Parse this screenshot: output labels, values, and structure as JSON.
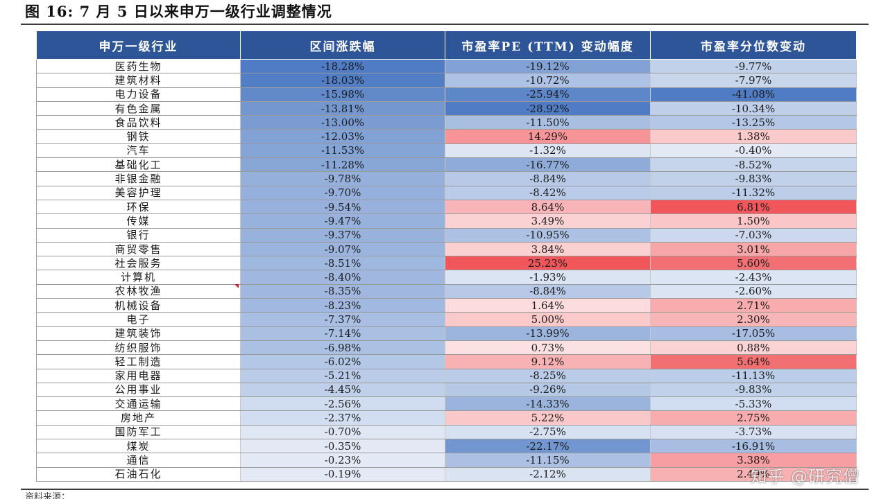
{
  "title": "图 16: 7 月 5 日以来申万一级行业调整情况",
  "table": {
    "headers": [
      "申万一级行业",
      "区间涨跌幅",
      "市盈率PE (TTM) 变动幅度",
      "市盈率分位数变动"
    ],
    "rows": [
      [
        "医药生物",
        "-18.28%",
        "-19.12%",
        "-9.77%"
      ],
      [
        "建筑材料",
        "-18.03%",
        "-10.72%",
        "-7.97%"
      ],
      [
        "电力设备",
        "-15.98%",
        "-25.94%",
        "-41.08%"
      ],
      [
        "有色金属",
        "-13.81%",
        "-28.92%",
        "-10.34%"
      ],
      [
        "食品饮料",
        "-13.00%",
        "-11.50%",
        "-13.25%"
      ],
      [
        "钢铁",
        "-12.03%",
        "14.29%",
        "1.38%"
      ],
      [
        "汽车",
        "-11.53%",
        "-1.32%",
        "-0.40%"
      ],
      [
        "基础化工",
        "-11.28%",
        "-16.77%",
        "-8.52%"
      ],
      [
        "非银金融",
        "-9.78%",
        "-8.84%",
        "-9.83%"
      ],
      [
        "美容护理",
        "-9.70%",
        "-8.42%",
        "-11.32%"
      ],
      [
        "环保",
        "-9.54%",
        "8.64%",
        "6.81%"
      ],
      [
        "传媒",
        "-9.47%",
        "3.49%",
        "1.50%"
      ],
      [
        "银行",
        "-9.37%",
        "-10.95%",
        "-7.03%"
      ],
      [
        "商贸零售",
        "-9.07%",
        "3.84%",
        "3.01%"
      ],
      [
        "社会服务",
        "-8.51%",
        "25.23%",
        "5.60%"
      ],
      [
        "计算机",
        "-8.40%",
        "-1.93%",
        "-2.43%"
      ],
      [
        "农林牧渔",
        "-8.35%",
        "-8.84%",
        "-2.60%"
      ],
      [
        "机械设备",
        "-8.23%",
        "1.64%",
        "2.71%"
      ],
      [
        "电子",
        "-7.37%",
        "5.00%",
        "2.30%"
      ],
      [
        "建筑装饰",
        "-7.14%",
        "-13.99%",
        "-17.05%"
      ],
      [
        "纺织服饰",
        "-6.98%",
        "0.73%",
        "0.88%"
      ],
      [
        "轻工制造",
        "-6.02%",
        "9.12%",
        "5.64%"
      ],
      [
        "家用电器",
        "-5.21%",
        "-8.25%",
        "-11.13%"
      ],
      [
        "公用事业",
        "-4.45%",
        "-9.26%",
        "-9.83%"
      ],
      [
        "交通运输",
        "-2.56%",
        "-14.33%",
        "-5.33%"
      ],
      [
        "房地产",
        "-2.37%",
        "5.22%",
        "2.75%"
      ],
      [
        "国防军工",
        "-0.70%",
        "-2.75%",
        "-3.73%"
      ],
      [
        "煤炭",
        "-0.35%",
        "-22.17%",
        "-16.91%"
      ],
      [
        "通信",
        "-0.23%",
        "-11.15%",
        "3.38%"
      ],
      [
        "石油石化",
        "-0.19%",
        "-2.12%",
        "2.49%"
      ]
    ]
  },
  "watermark": "知乎 @研究僧",
  "footer": "资料来源：",
  "colors": {
    "header_bg": "#2e5597",
    "negative_max": "#4f7cc4",
    "positive_max": "#f0565a",
    "neutral": "#ffffff"
  }
}
